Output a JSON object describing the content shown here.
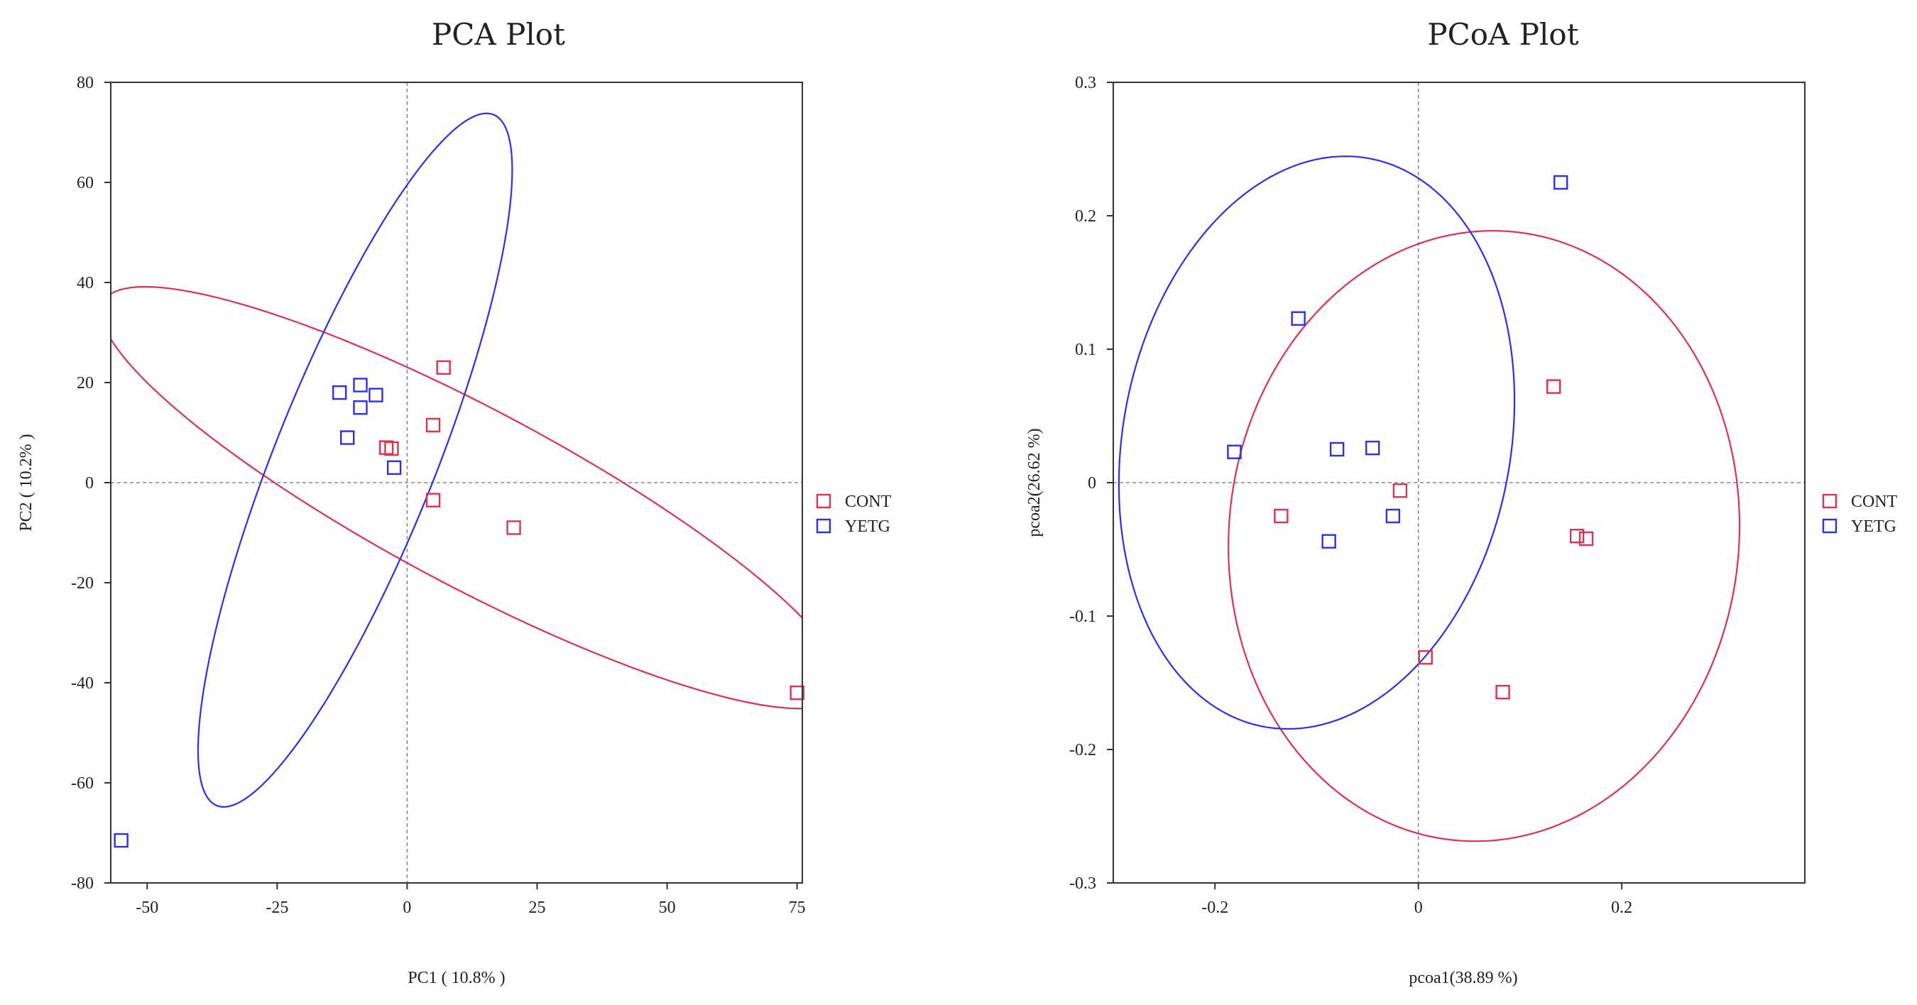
{
  "colors": {
    "CONT": "#e0304e",
    "YETG": "#2a2ff0"
  },
  "chart_data": [
    {
      "type": "scatter",
      "title": "PCA Plot",
      "xlabel": "PC1 ( 10.8% )",
      "ylabel": "PC2 ( 10.2% )",
      "xlim": [
        -57,
        76
      ],
      "ylim": [
        -80,
        80
      ],
      "xticks": [
        -50,
        -25,
        0,
        25,
        50,
        75
      ],
      "xtick_labels": [
        "-50",
        "-25",
        "0",
        "25",
        "50",
        "75"
      ],
      "yticks": [
        -80,
        -60,
        -40,
        -20,
        0,
        20,
        40,
        60,
        80
      ],
      "ytick_labels": [
        "-80",
        "-60",
        "-40",
        "-20",
        "0",
        "20",
        "40",
        "60",
        "80"
      ],
      "legend": [
        "CONT",
        "YETG"
      ],
      "legend_position": "right",
      "series": [
        {
          "name": "CONT",
          "points": [
            [
              7,
              23
            ],
            [
              5,
              11.5
            ],
            [
              -4,
              7
            ],
            [
              -3,
              6.8
            ],
            [
              5,
              -3.5
            ],
            [
              20.5,
              -9
            ],
            [
              75,
              -42
            ]
          ]
        },
        {
          "name": "YETG",
          "points": [
            [
              -13,
              18
            ],
            [
              -9,
              19.5
            ],
            [
              -6,
              17.5
            ],
            [
              -9,
              15
            ],
            [
              -11.5,
              9
            ],
            [
              -2.5,
              3
            ],
            [
              -55,
              -71.5
            ]
          ]
        }
      ],
      "ellipses": [
        {
          "series": "CONT",
          "center": [
            12.5,
            -3
          ],
          "semi_major": 81,
          "semi_minor": 17.5,
          "angle_deg": -29
        },
        {
          "series": "YETG",
          "center": [
            -10,
            4.5
          ],
          "semi_major": 74,
          "semi_minor": 15.5,
          "angle_deg": 69
        }
      ]
    },
    {
      "type": "scatter",
      "title": "PCoA Plot",
      "xlabel": "pcoa1(38.89 %)",
      "ylabel": "pcoa2(26.62 %)",
      "xlim": [
        -0.3,
        0.38
      ],
      "ylim": [
        -0.3,
        0.3
      ],
      "xticks": [
        -0.2,
        0,
        0.2
      ],
      "xtick_labels": [
        "-0.2",
        "0",
        "0.2"
      ],
      "yticks": [
        -0.3,
        -0.2,
        -0.1,
        0,
        0.1,
        0.2,
        0.3
      ],
      "ytick_labels": [
        "-0.3",
        "-0.2",
        "-0.1",
        "0",
        "0.1",
        "0.2",
        "0.3"
      ],
      "legend": [
        "CONT",
        "YETG"
      ],
      "legend_position": "right",
      "series": [
        {
          "name": "CONT",
          "points": [
            [
              0.133,
              0.072
            ],
            [
              -0.135,
              -0.025
            ],
            [
              -0.018,
              -0.006
            ],
            [
              0.156,
              -0.04
            ],
            [
              0.165,
              -0.042
            ],
            [
              0.007,
              -0.131
            ],
            [
              0.083,
              -0.157
            ]
          ]
        },
        {
          "name": "YETG",
          "points": [
            [
              0.14,
              0.225
            ],
            [
              -0.118,
              0.123
            ],
            [
              -0.181,
              0.023
            ],
            [
              -0.08,
              0.025
            ],
            [
              -0.045,
              0.026
            ],
            [
              -0.088,
              -0.044
            ],
            [
              -0.025,
              -0.025
            ]
          ]
        }
      ],
      "ellipses": [
        {
          "series": "CONT",
          "center": [
            0.0645,
            -0.04
          ],
          "semi_major": 0.252,
          "semi_minor": 0.228,
          "angle_deg": 10
        },
        {
          "series": "YETG",
          "center": [
            -0.1,
            0.03
          ],
          "semi_major": 0.222,
          "semi_minor": 0.186,
          "angle_deg": 62
        }
      ]
    }
  ]
}
